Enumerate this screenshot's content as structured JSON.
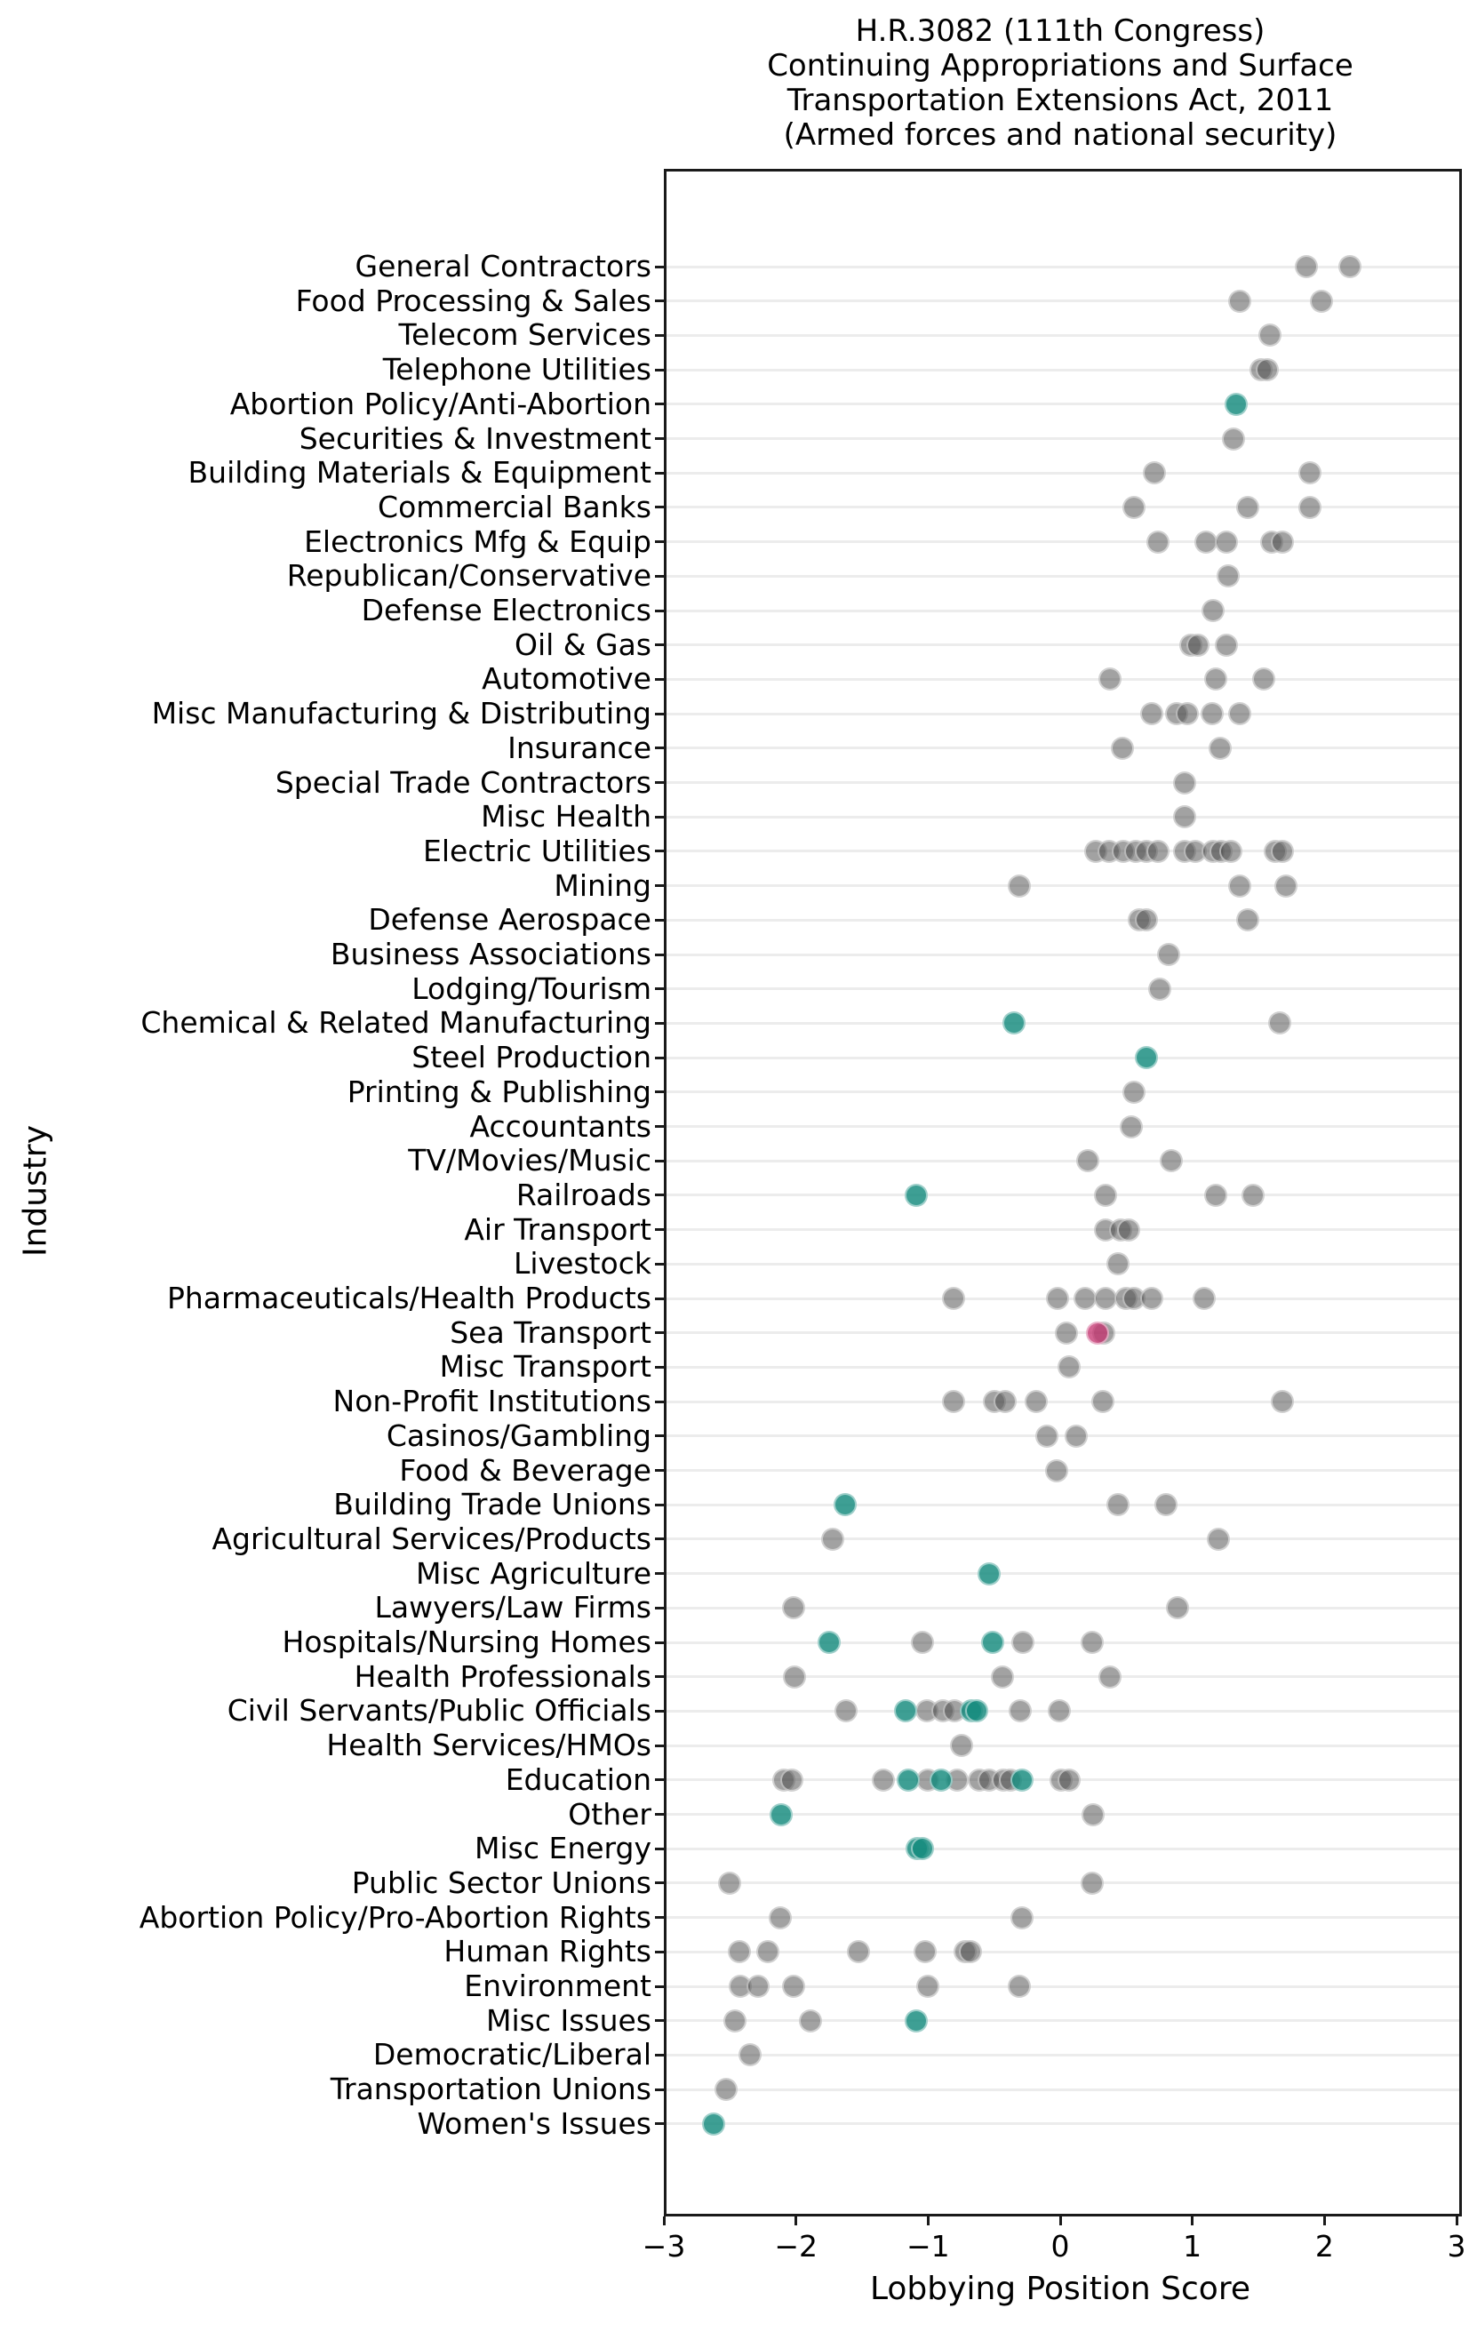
{
  "chart_data": {
    "type": "scatter",
    "title": "H.R.3082 (111th Congress) Continuing Appropriations and Surface Transportation Extensions Act, 2011 (Armed forces and national security)",
    "title_lines": [
      "H.R.3082 (111th Congress)",
      "Continuing Appropriations and Surface",
      "Transportation Extensions Act, 2011",
      "(Armed forces and national security)"
    ],
    "xlabel": "Lobbying Position Score",
    "ylabel": "Industry",
    "xlim": [
      -3,
      3
    ],
    "grid": "horizontal-only",
    "legend": "none",
    "point_colors": {
      "gray": "#a3a3a3",
      "teal": "#3e9f94",
      "pink": "#d36492"
    },
    "x_ticks": {
      "values": [
        -3,
        -2,
        -1,
        0,
        1,
        2,
        3
      ],
      "labels": [
        "−3",
        "−2",
        "−1",
        "0",
        "1",
        "2",
        "3"
      ]
    },
    "rows": [
      {
        "industry": "General Contractors",
        "gray": [
          1.86,
          2.19
        ]
      },
      {
        "industry": "Food Processing & Sales",
        "gray": [
          1.36,
          1.98
        ]
      },
      {
        "industry": "Telecom Services",
        "gray": [
          1.59
        ]
      },
      {
        "industry": "Telephone Utilities",
        "gray": [
          1.52,
          1.57
        ]
      },
      {
        "industry": "Abortion Policy/Anti-Abortion",
        "teal": [
          1.33
        ]
      },
      {
        "industry": "Securities & Investment",
        "gray": [
          1.31
        ]
      },
      {
        "industry": "Building Materials & Equipment",
        "gray": [
          0.71,
          1.89
        ]
      },
      {
        "industry": "Commercial Banks",
        "gray": [
          0.56,
          1.42,
          1.89
        ]
      },
      {
        "industry": "Electronics Mfg & Equip",
        "gray": [
          0.74,
          1.1,
          1.26,
          1.6,
          1.68
        ]
      },
      {
        "industry": "Republican/Conservative",
        "gray": [
          1.27
        ]
      },
      {
        "industry": "Defense Electronics",
        "gray": [
          1.16
        ]
      },
      {
        "industry": "Oil & Gas",
        "gray": [
          0.99,
          1.04,
          1.26
        ]
      },
      {
        "industry": "Automotive",
        "gray": [
          0.38,
          1.18,
          1.54
        ]
      },
      {
        "industry": "Misc Manufacturing & Distributing",
        "gray": [
          0.69,
          0.88,
          0.96,
          1.15,
          1.36
        ]
      },
      {
        "industry": "Insurance",
        "gray": [
          0.47,
          1.21
        ]
      },
      {
        "industry": "Special Trade Contractors",
        "gray": [
          0.94
        ]
      },
      {
        "industry": "Misc Health",
        "gray": [
          0.94
        ]
      },
      {
        "industry": "Electric Utilities",
        "gray": [
          0.27,
          0.37,
          0.48,
          0.57,
          0.65,
          0.74,
          0.94,
          1.02,
          1.16,
          1.22,
          1.29,
          1.63,
          1.68
        ]
      },
      {
        "industry": "Mining",
        "gray": [
          -0.31,
          1.36,
          1.71
        ]
      },
      {
        "industry": "Defense Aerospace",
        "gray": [
          0.6,
          0.65,
          1.42
        ]
      },
      {
        "industry": "Business Associations",
        "gray": [
          0.82
        ]
      },
      {
        "industry": "Lodging/Tourism",
        "gray": [
          0.75
        ]
      },
      {
        "industry": "Chemical & Related Manufacturing",
        "gray": [
          1.66
        ],
        "teal": [
          -0.35
        ]
      },
      {
        "industry": "Steel Production",
        "teal": [
          0.65
        ]
      },
      {
        "industry": "Printing & Publishing",
        "gray": [
          0.56
        ]
      },
      {
        "industry": "Accountants",
        "gray": [
          0.54
        ]
      },
      {
        "industry": "TV/Movies/Music",
        "gray": [
          0.21,
          0.84
        ]
      },
      {
        "industry": "Railroads",
        "gray": [
          0.34,
          1.18,
          1.46
        ],
        "teal": [
          -1.09
        ]
      },
      {
        "industry": "Air Transport",
        "gray": [
          0.34,
          0.46,
          0.52
        ]
      },
      {
        "industry": "Livestock",
        "gray": [
          0.44
        ]
      },
      {
        "industry": "Pharmaceuticals/Health Products",
        "gray": [
          -0.81,
          -0.02,
          0.19,
          0.34,
          0.5,
          0.56,
          0.69,
          1.09
        ]
      },
      {
        "industry": "Sea Transport",
        "gray": [
          0.05,
          0.33
        ],
        "pink": [
          0.28
        ]
      },
      {
        "industry": "Misc Transport",
        "gray": [
          0.07
        ]
      },
      {
        "industry": "Non-Profit Institutions",
        "gray": [
          -0.81,
          -0.5,
          -0.42,
          -0.18,
          0.32,
          1.68
        ]
      },
      {
        "industry": "Casinos/Gambling",
        "gray": [
          -0.1,
          0.12
        ]
      },
      {
        "industry": "Food & Beverage",
        "gray": [
          -0.03
        ]
      },
      {
        "industry": "Building Trade Unions",
        "gray": [
          0.44,
          0.8
        ],
        "teal": [
          -1.63
        ]
      },
      {
        "industry": "Agricultural Services/Products",
        "gray": [
          -1.72,
          1.2
        ]
      },
      {
        "industry": "Misc Agriculture",
        "teal": [
          -0.54
        ]
      },
      {
        "industry": "Lawyers/Law Firms",
        "gray": [
          -2.02,
          0.89
        ]
      },
      {
        "industry": "Hospitals/Nursing Homes",
        "gray": [
          -1.04,
          -0.28,
          0.24
        ],
        "teal": [
          -1.75,
          -0.51
        ]
      },
      {
        "industry": "Health Professionals",
        "gray": [
          -2.01,
          -0.44,
          0.38
        ]
      },
      {
        "industry": "Civil Servants/Public Officials",
        "gray": [
          -1.62,
          -1.01,
          -0.89,
          -0.8,
          -0.3,
          -0.01
        ],
        "teal": [
          -1.17,
          -0.67,
          -0.63
        ]
      },
      {
        "industry": "Health Services/HMOs",
        "gray": [
          -0.75
        ]
      },
      {
        "industry": "Education",
        "gray": [
          -2.09,
          -2.03,
          -1.34,
          -1.0,
          -0.78,
          -0.61,
          -0.54,
          -0.43,
          -0.38,
          0.01,
          0.07
        ],
        "teal": [
          -1.15,
          -0.9,
          -0.29
        ]
      },
      {
        "industry": "Other",
        "gray": [
          0.25
        ],
        "teal": [
          -2.11
        ]
      },
      {
        "industry": "Misc Energy",
        "teal": [
          -1.08,
          -1.04
        ]
      },
      {
        "industry": "Public Sector Unions",
        "gray": [
          -2.5,
          0.24
        ]
      },
      {
        "industry": "Abortion Policy/Pro-Abortion Rights",
        "gray": [
          -2.12,
          -0.29
        ]
      },
      {
        "industry": "Human Rights",
        "gray": [
          -2.43,
          -2.21,
          -1.53,
          -1.02,
          -0.72,
          -0.68
        ]
      },
      {
        "industry": "Environment",
        "gray": [
          -2.42,
          -2.29,
          -2.02,
          -1.0,
          -0.31
        ]
      },
      {
        "industry": "Misc Issues",
        "gray": [
          -2.46,
          -1.89
        ],
        "teal": [
          -1.09
        ]
      },
      {
        "industry": "Democratic/Liberal",
        "gray": [
          -2.35
        ]
      },
      {
        "industry": "Transportation Unions",
        "gray": [
          -2.53
        ]
      },
      {
        "industry": "Women's Issues",
        "teal": [
          -2.62
        ]
      }
    ]
  }
}
